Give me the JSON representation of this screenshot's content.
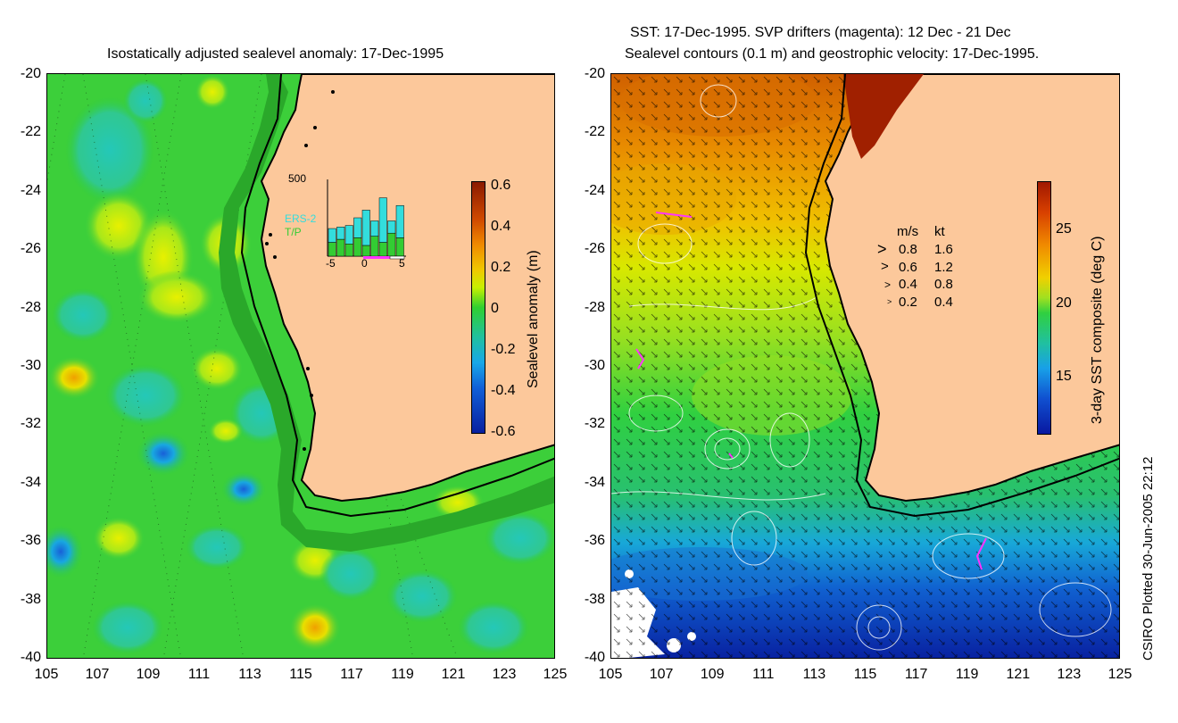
{
  "left_panel": {
    "title": "Isostatically adjusted sealevel anomaly: 17-Dec-1995",
    "colorbar": {
      "title": "Sealevel anomaly (m)",
      "ticks": [
        "0.6",
        "0.4",
        "0.2",
        "0",
        "-0.2",
        "-0.4",
        "-0.6"
      ]
    },
    "inset": {
      "ymax": "500",
      "sat1": "ERS-2",
      "sat2": "T/P",
      "x_ticks": [
        "-5",
        "0",
        "5"
      ],
      "ers2_counts": [
        180,
        190,
        200,
        250,
        300,
        230,
        380,
        230,
        330
      ],
      "tp_counts": [
        90,
        110,
        80,
        120,
        70,
        130,
        90,
        150,
        120
      ]
    },
    "colors": {
      "ocean": "#2ecc40",
      "land": "#fcc89b",
      "ers2": "#33dddd",
      "tp": "#33cc33",
      "marker": "#ff33ff"
    }
  },
  "right_panel": {
    "title_line1": "SST: 17-Dec-1995. SVP drifters (magenta): 12 Dec - 21 Dec",
    "title_line2": "Sealevel contours (0.1 m) and geostrophic velocity: 17-Dec-1995.",
    "colorbar": {
      "title": "3-day SST composite (deg C)",
      "ticks": [
        "25",
        "20",
        "15"
      ]
    },
    "velocity_key": {
      "header_ms": "m/s",
      "header_kt": "kt",
      "rows": [
        {
          "ms": "0.8",
          "kt": "1.6"
        },
        {
          "ms": "0.6",
          "kt": "1.2"
        },
        {
          "ms": "0.4",
          "kt": "0.8"
        },
        {
          "ms": "0.2",
          "kt": "0.4"
        }
      ]
    }
  },
  "axes": {
    "y_ticks": [
      "-20",
      "-22",
      "-24",
      "-26",
      "-28",
      "-30",
      "-32",
      "-34",
      "-36",
      "-38",
      "-40"
    ],
    "x_ticks": [
      "105",
      "107",
      "109",
      "111",
      "113",
      "115",
      "117",
      "119",
      "121",
      "123",
      "125"
    ]
  },
  "credit": "CSIRO Plotted 30-Jun-2005 22:12"
}
